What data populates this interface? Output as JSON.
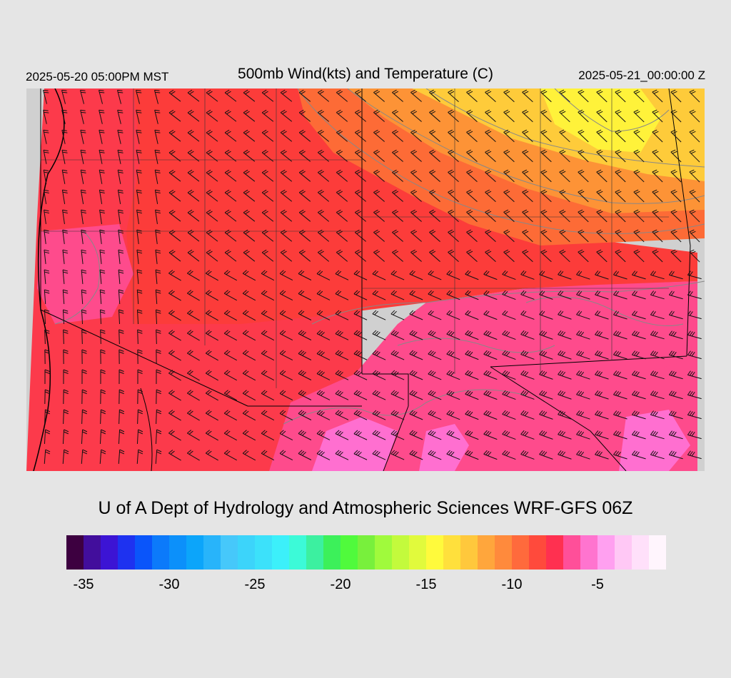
{
  "header": {
    "valid_time": "2025-05-20 05:00PM MST",
    "title": "500mb Wind(kts) and Temperature (C)",
    "run_time": "2025-05-21_00:00:00 Z"
  },
  "footer": {
    "credit": "U of A Dept of Hydrology and Atmospheric Sciences WRF-GFS 06Z"
  },
  "map": {
    "background_color": "#d0d0d0",
    "border_color": "#000000",
    "contour_color": "#888888",
    "barb_color": "#111111",
    "temperature_regions": [
      {
        "color": "#fc3a4b",
        "label": "west - warmest red"
      },
      {
        "color": "#fc3c3a",
        "label": "central red"
      },
      {
        "color": "#fd6b36",
        "label": "north central orange"
      },
      {
        "color": "#fd9336",
        "label": "northeast light orange"
      },
      {
        "color": "#fecb3a",
        "label": "northeast yellow-orange"
      },
      {
        "color": "#fff23a",
        "label": "northeast yellow"
      },
      {
        "color": "#fe4b8c",
        "label": "southeast pink"
      },
      {
        "color": "#ff6fd0",
        "label": "south magenta"
      }
    ]
  },
  "colorbar": {
    "colors": [
      "#3d0040",
      "#420e9c",
      "#3c14d4",
      "#1e32f0",
      "#0a55fa",
      "#0c7afa",
      "#0c90fa",
      "#0ca5fa",
      "#28b4fa",
      "#46c8fa",
      "#3cd4fa",
      "#3ce1fa",
      "#3cf0fa",
      "#3cfad8",
      "#3cf0a0",
      "#3cf05a",
      "#50fa3c",
      "#78f03c",
      "#a0fa3c",
      "#c3fa3c",
      "#e1fa3c",
      "#fffa3c",
      "#ffe03c",
      "#ffc83c",
      "#ffa63c",
      "#ff8a3c",
      "#ff6a3c",
      "#ff4a3c",
      "#ff3050",
      "#ff4f99",
      "#ff74cf",
      "#ffa0f0",
      "#ffc8f5",
      "#ffe0fa",
      "#fff5fd"
    ],
    "tick_labels": [
      "-35",
      "-30",
      "-25",
      "-20",
      "-15",
      "-10",
      "-5"
    ],
    "tick_index": [
      1,
      6,
      11,
      16,
      21,
      26,
      31
    ]
  }
}
